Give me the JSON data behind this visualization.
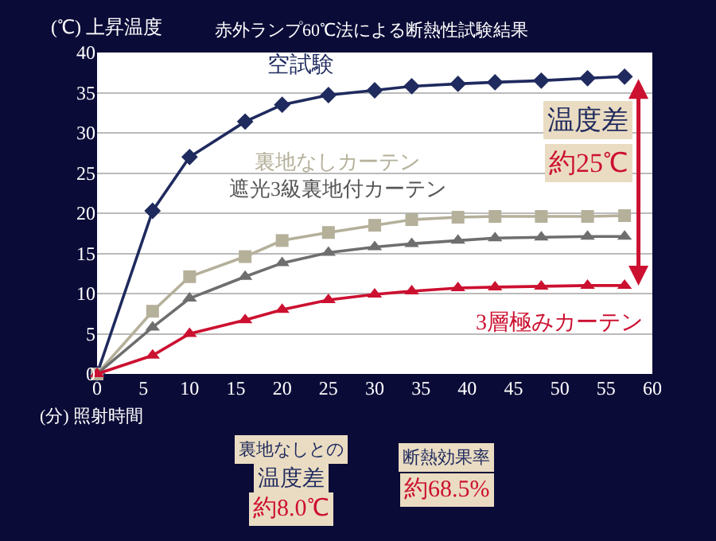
{
  "chart_data": {
    "type": "line",
    "title": "赤外ランプ60℃法による断熱性試験結果",
    "ylabel": "(℃) 上昇温度",
    "xlabel": "(分) 照射時間",
    "x": [
      0,
      6,
      10,
      16,
      20,
      25,
      30,
      34,
      39,
      43,
      48,
      53,
      57
    ],
    "series": [
      {
        "name": "空試験",
        "color": "#1f2a5e",
        "marker": "diamond",
        "values": [
          0,
          20.3,
          27.0,
          31.4,
          33.5,
          34.7,
          35.3,
          35.8,
          36.1,
          36.3,
          36.5,
          36.8,
          37.0
        ]
      },
      {
        "name": "裏地なしカーテン",
        "color": "#b5b09a",
        "marker": "square",
        "values": [
          0,
          7.8,
          12.1,
          14.6,
          16.6,
          17.6,
          18.5,
          19.2,
          19.5,
          19.6,
          19.6,
          19.6,
          19.7
        ]
      },
      {
        "name": "遮光3級裏地付カーテン",
        "color": "#6e6e6e",
        "marker": "triangle",
        "values": [
          0,
          5.8,
          9.4,
          12.1,
          13.8,
          15.1,
          15.8,
          16.2,
          16.6,
          16.9,
          17.0,
          17.1,
          17.1
        ]
      },
      {
        "name": "3層極みカーテン",
        "color": "#cc1030",
        "marker": "triangle",
        "values": [
          0,
          2.3,
          5.0,
          6.7,
          8.0,
          9.2,
          9.9,
          10.3,
          10.7,
          10.8,
          10.9,
          11.0,
          11.0
        ]
      }
    ],
    "xlim": [
      0,
      60
    ],
    "xticks": [
      0,
      5,
      10,
      15,
      20,
      25,
      30,
      35,
      40,
      45,
      50,
      55,
      60
    ],
    "ylim": [
      0,
      40
    ],
    "yticks": [
      0,
      5,
      10,
      15,
      20,
      25,
      30,
      35,
      40
    ],
    "grid": "y",
    "line_style": "solid",
    "annotations": [
      "温度差",
      "約25℃",
      "裏地なしとの",
      "温度差",
      "約8.0℃",
      "断熱効果率",
      "約68.5%"
    ]
  }
}
